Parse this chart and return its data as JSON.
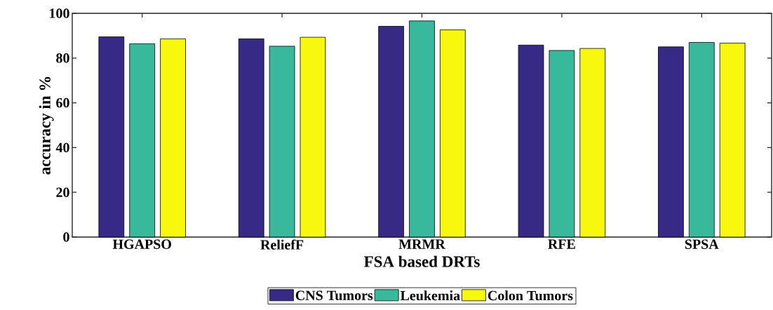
{
  "chart_data": {
    "type": "bar",
    "xlabel": "FSA based DRTs",
    "ylabel": "accuracy in %",
    "categories": [
      "HGAPSO",
      "ReliefF",
      "MRMR",
      "RFE",
      "SPSA"
    ],
    "series": [
      {
        "name": "CNS Tumors",
        "color": "#372a86",
        "values": [
          89.5,
          88.6,
          94.2,
          85.8,
          85.0
        ]
      },
      {
        "name": "Leukemia",
        "color": "#39b99b",
        "values": [
          86.4,
          85.3,
          96.6,
          83.4,
          87.0
        ]
      },
      {
        "name": "Colon Tumors",
        "color": "#f8f80f",
        "values": [
          88.6,
          89.3,
          92.6,
          84.3,
          86.7
        ]
      }
    ],
    "ylim": [
      0,
      100
    ],
    "yticks": [
      0,
      20,
      40,
      60,
      80,
      100
    ],
    "legend": "bottom",
    "grid": false
  }
}
